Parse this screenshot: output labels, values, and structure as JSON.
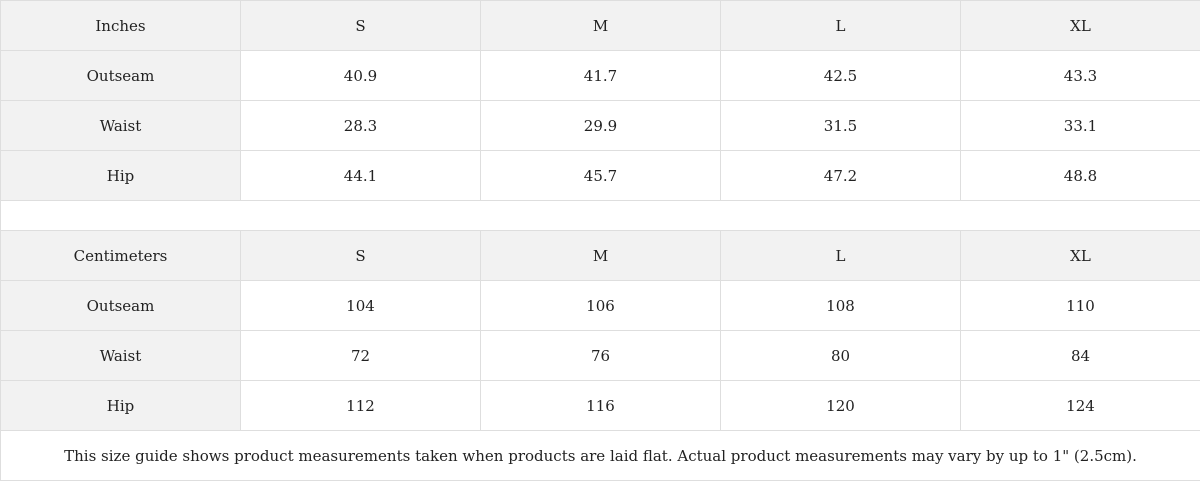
{
  "tables": [
    {
      "header": [
        "Inches",
        "S",
        "M",
        "L",
        "XL"
      ],
      "rows": [
        [
          "Outseam",
          "40.9",
          "41.7",
          "42.5",
          "43.3"
        ],
        [
          "Waist",
          "28.3",
          "29.9",
          "31.5",
          "33.1"
        ],
        [
          "Hip",
          "44.1",
          "45.7",
          "47.2",
          "48.8"
        ]
      ]
    },
    {
      "header": [
        "Centimeters",
        "S",
        "M",
        "L",
        "XL"
      ],
      "rows": [
        [
          "Outseam",
          "104",
          "106",
          "108",
          "110"
        ],
        [
          "Waist",
          "72",
          "76",
          "80",
          "84"
        ],
        [
          "Hip",
          "112",
          "116",
          "120",
          "124"
        ]
      ]
    }
  ],
  "note": "This size guide shows product measurements taken when products are laid flat.  Actual product measurements may vary by up to 1\" (2.5cm).",
  "colors": {
    "header_bg": "#f2f2f2",
    "border": "#dedede"
  }
}
